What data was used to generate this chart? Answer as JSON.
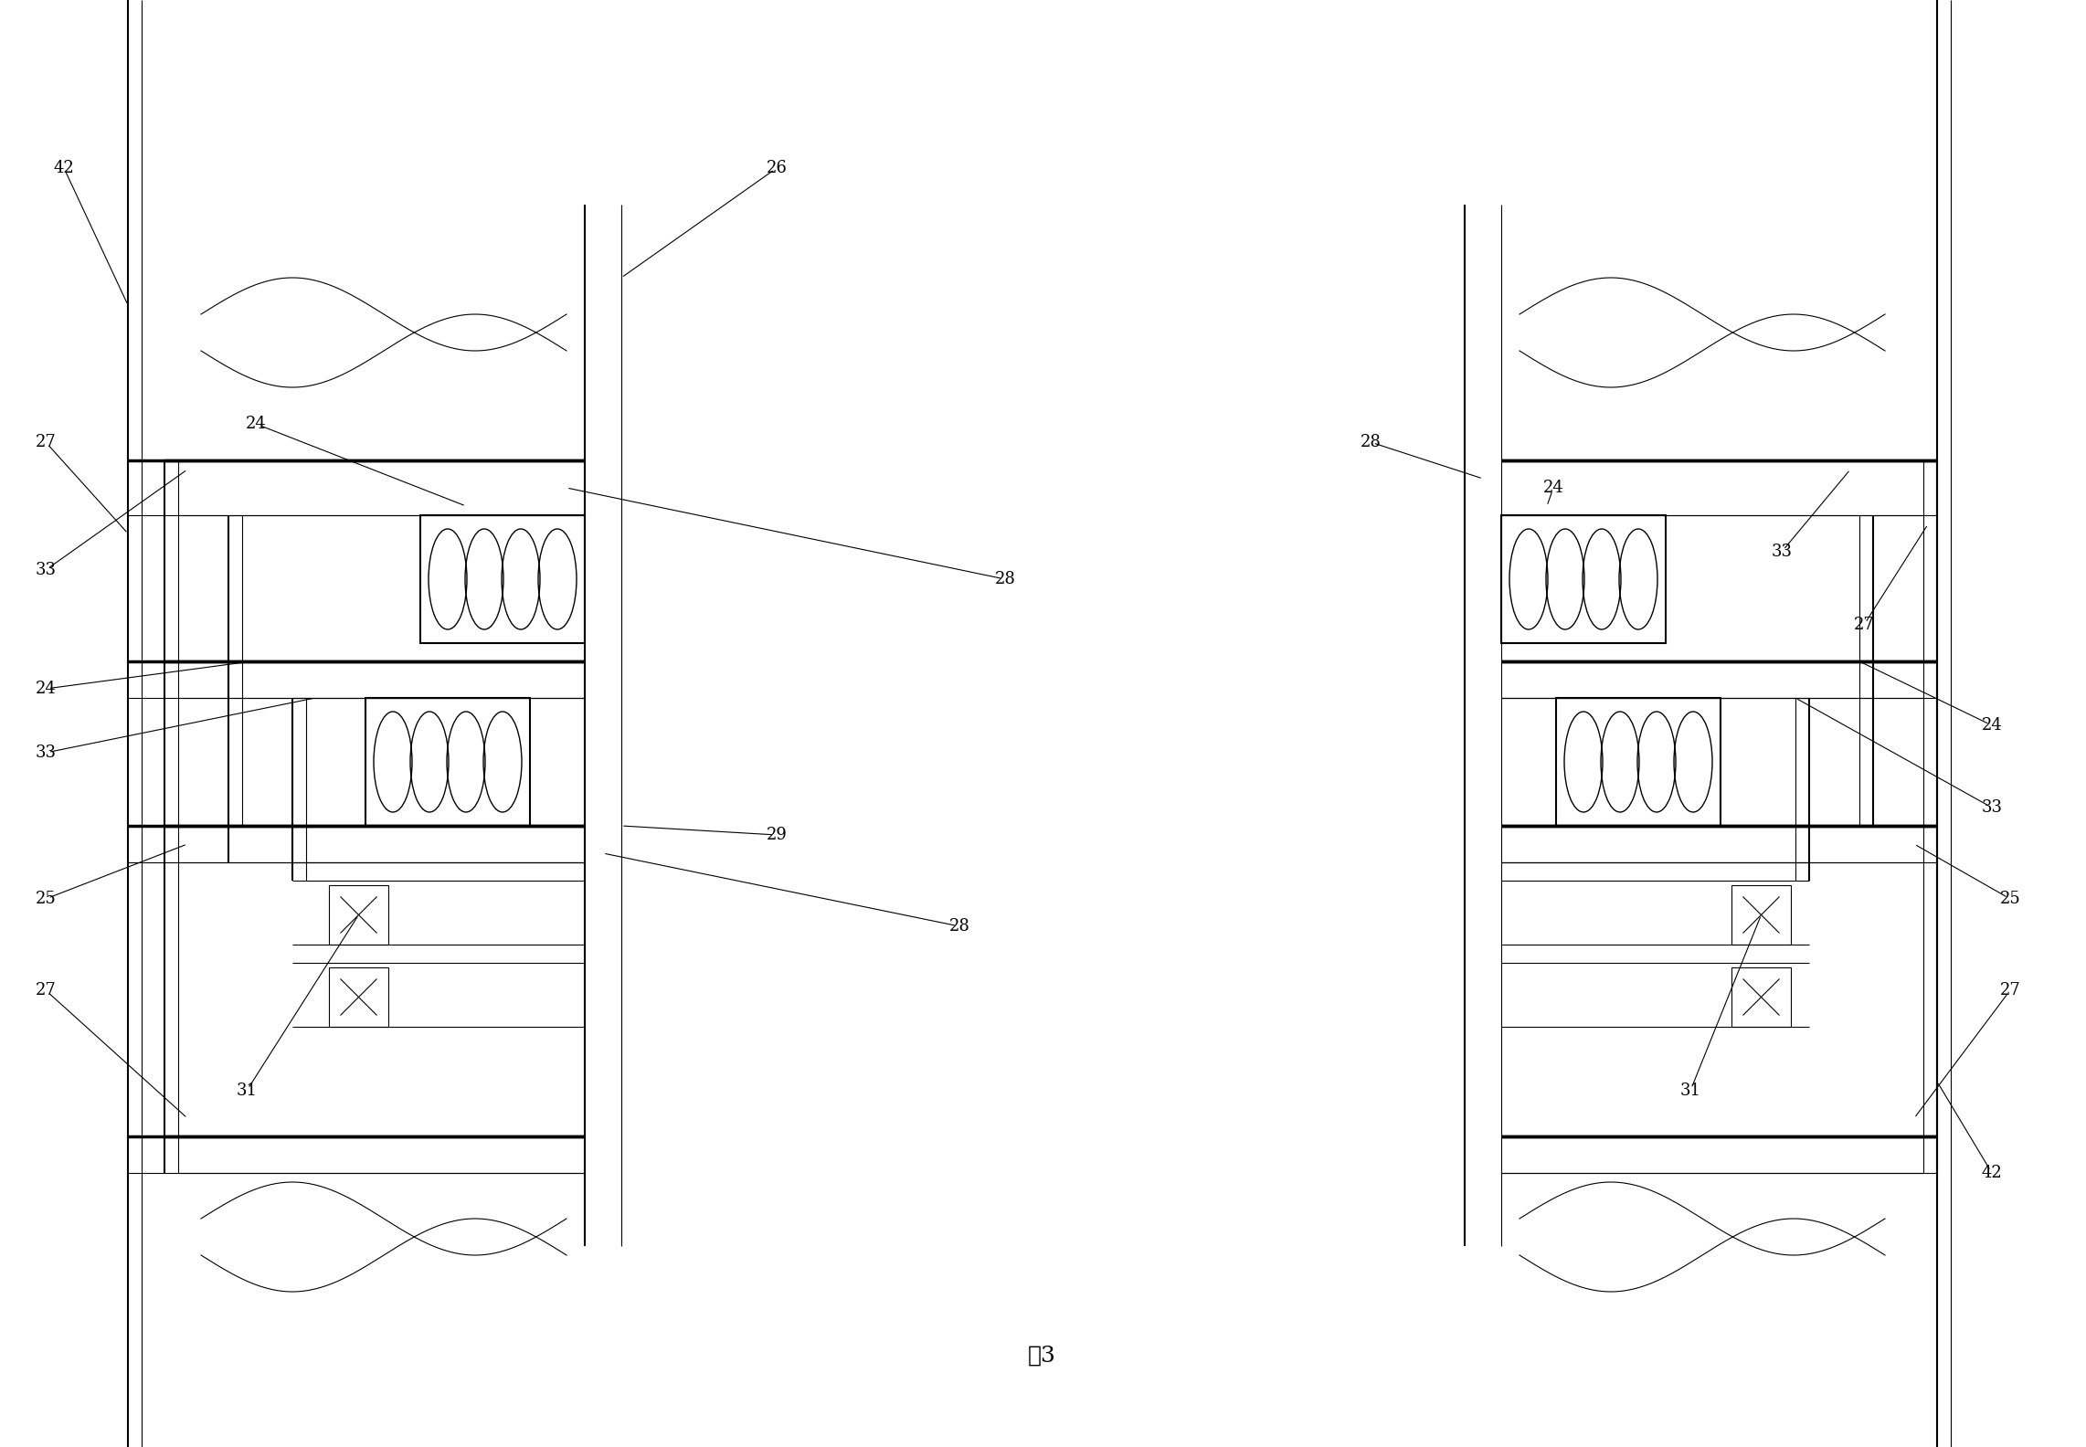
{
  "title": "图3",
  "bg_color": "#ffffff",
  "line_color": "#000000",
  "fig_width": 22.83,
  "fig_height": 15.84
}
